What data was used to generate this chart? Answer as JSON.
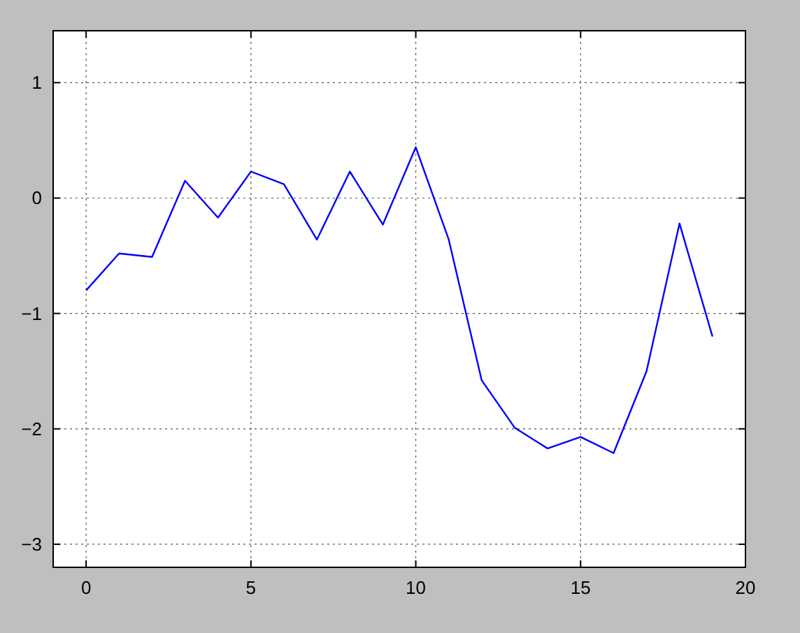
{
  "chart_data": {
    "type": "line",
    "x": [
      0,
      1,
      2,
      3,
      4,
      5,
      6,
      7,
      8,
      9,
      10,
      11,
      12,
      13,
      14,
      15,
      16,
      17,
      18,
      19
    ],
    "series": [
      {
        "color": "#0000ff",
        "values": [
          -0.8,
          -0.48,
          -0.51,
          0.15,
          -0.17,
          0.23,
          0.12,
          -0.36,
          0.23,
          -0.23,
          0.44,
          -0.36,
          -1.58,
          -1.99,
          -2.17,
          -2.07,
          -2.21,
          -1.5,
          -0.22,
          -1.2
        ]
      }
    ],
    "xlim": [
      -1,
      20
    ],
    "xticks": [
      0,
      5,
      10,
      15,
      20
    ],
    "ylim": [
      -3.2,
      1.45
    ],
    "yticks": [
      -3,
      -2,
      -1,
      0,
      1
    ],
    "grid": true,
    "line_style": "solid",
    "marker": "none"
  }
}
